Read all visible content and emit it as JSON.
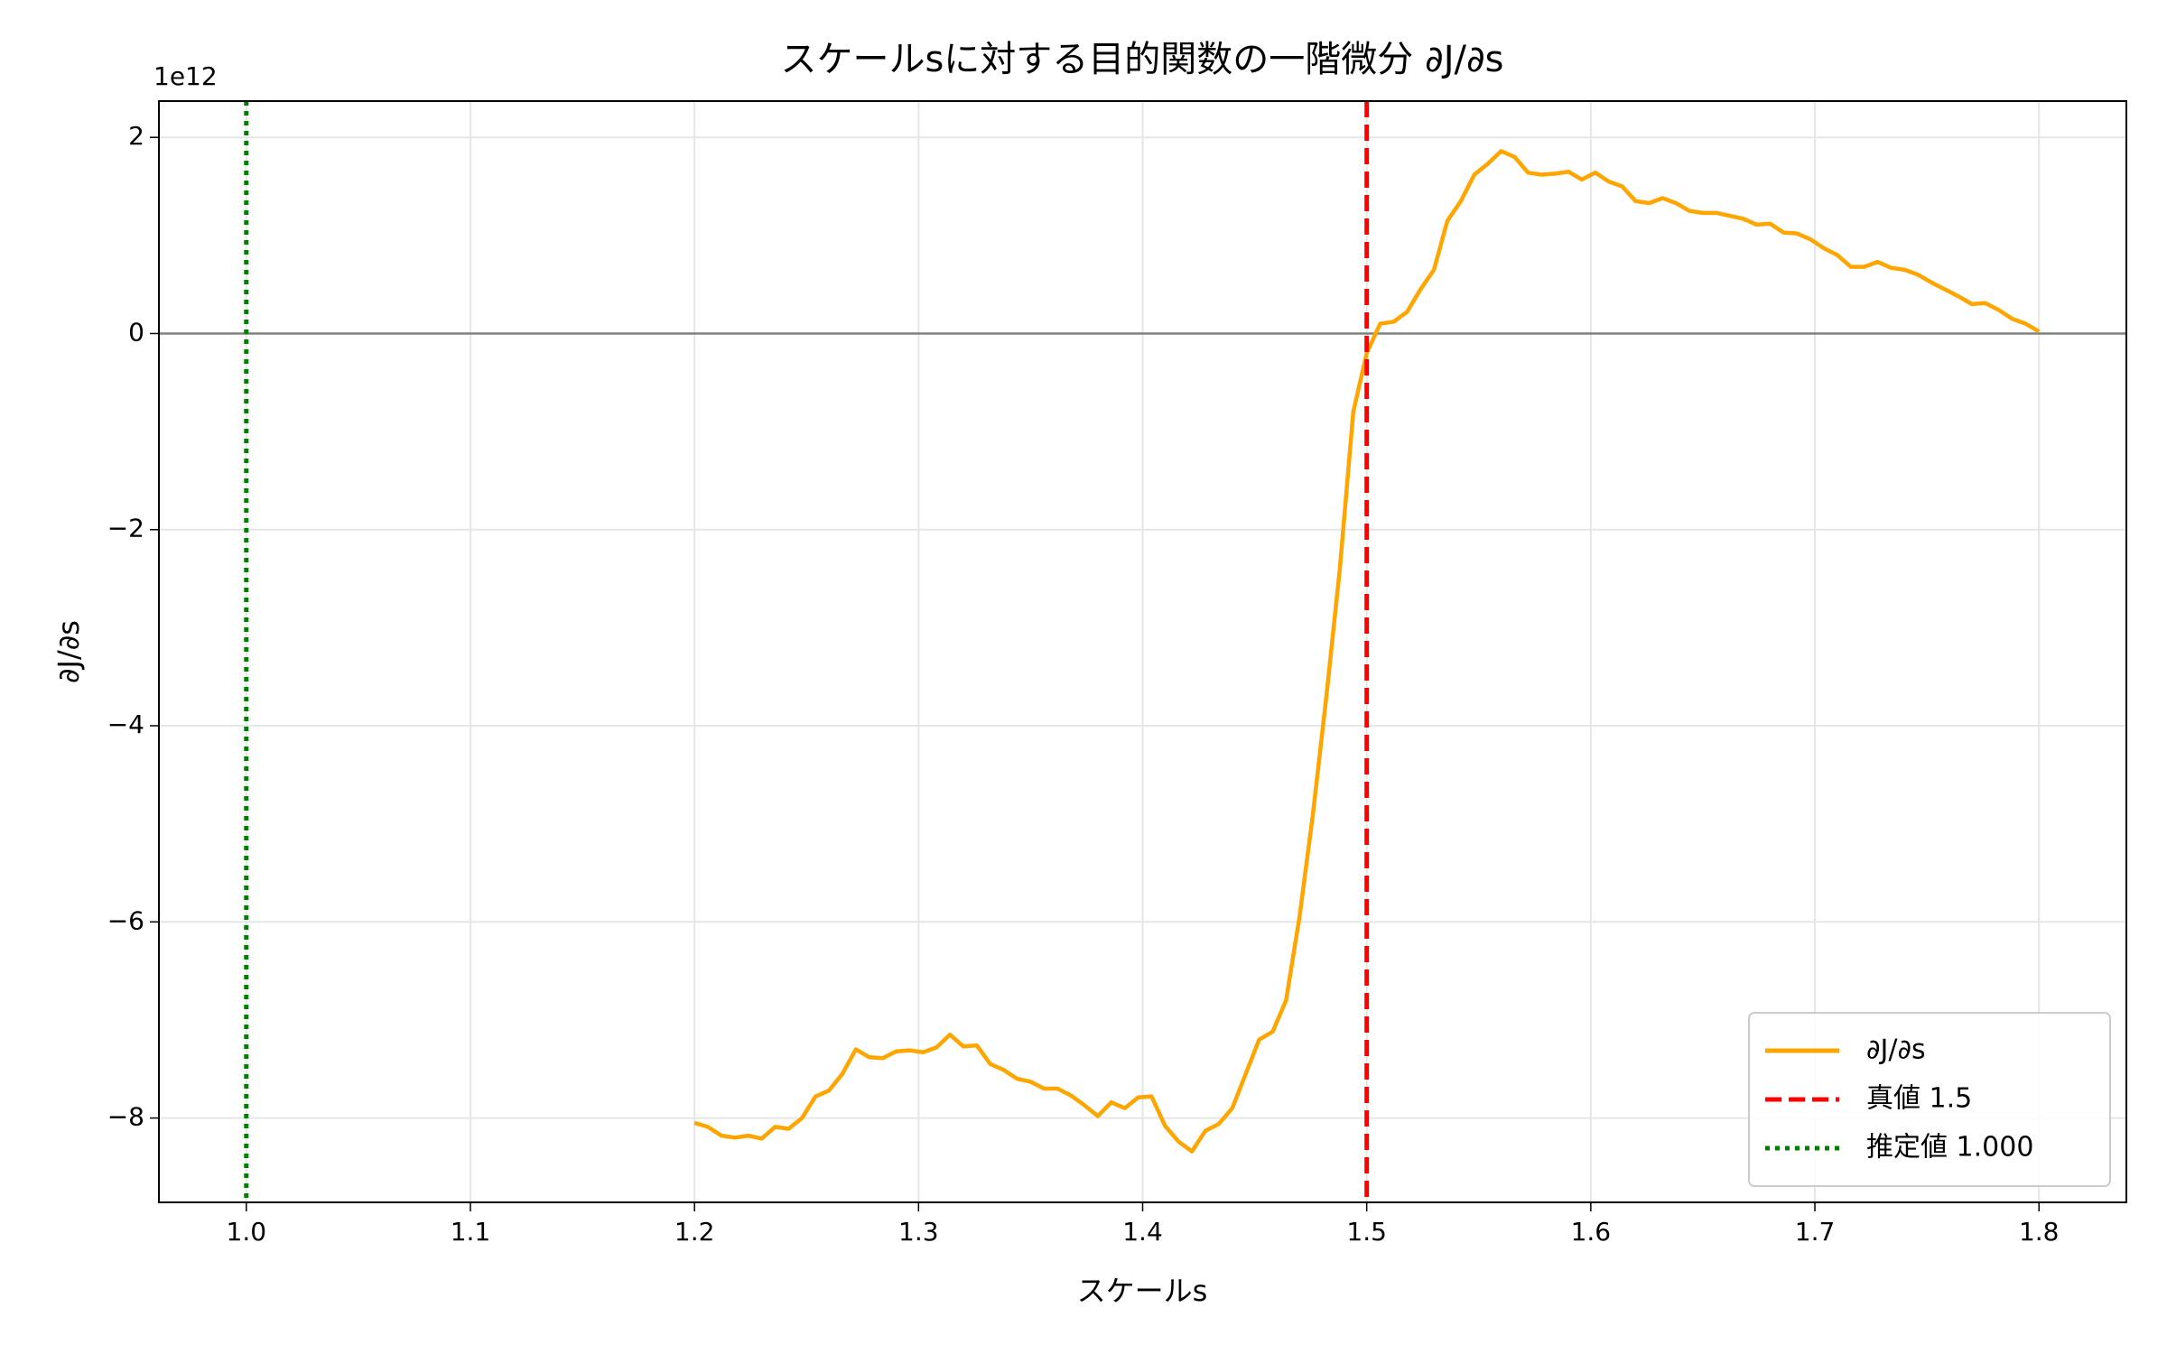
{
  "chart_data": {
    "type": "line",
    "title": "スケールsに対する目的関数の一階微分 ∂J/∂s",
    "x_label": "スケールs",
    "y_label": "∂J/∂s",
    "y_offset_text": "1e12",
    "x": [
      1.2,
      1.206,
      1.212,
      1.218,
      1.224,
      1.23,
      1.236,
      1.242,
      1.248,
      1.254,
      1.26,
      1.266,
      1.272,
      1.278,
      1.284,
      1.29,
      1.296,
      1.302,
      1.308,
      1.314,
      1.32,
      1.326,
      1.332,
      1.338,
      1.344,
      1.35,
      1.356,
      1.362,
      1.368,
      1.374,
      1.38,
      1.386,
      1.392,
      1.398,
      1.404,
      1.41,
      1.416,
      1.422,
      1.428,
      1.434,
      1.44,
      1.446,
      1.452,
      1.458,
      1.464,
      1.47,
      1.476,
      1.482,
      1.488,
      1.494,
      1.5,
      1.506,
      1.512,
      1.518,
      1.524,
      1.53,
      1.536,
      1.542,
      1.548,
      1.554,
      1.56,
      1.566,
      1.572,
      1.578,
      1.584,
      1.59,
      1.596,
      1.602,
      1.608,
      1.614,
      1.62,
      1.626,
      1.632,
      1.638,
      1.644,
      1.65,
      1.656,
      1.662,
      1.668,
      1.674,
      1.68,
      1.686,
      1.692,
      1.698,
      1.704,
      1.71,
      1.716,
      1.722,
      1.728,
      1.734,
      1.74,
      1.746,
      1.752,
      1.758,
      1.764,
      1.77,
      1.776,
      1.782,
      1.788,
      1.794,
      1.8
    ],
    "series": [
      {
        "name": "∂J/∂s",
        "color": "#ffa500",
        "values": [
          -8.05,
          -8.09,
          -8.18,
          -8.2,
          -8.18,
          -8.21,
          -8.09,
          -8.11,
          -8.0,
          -7.78,
          -7.72,
          -7.55,
          -7.3,
          -7.38,
          -7.39,
          -7.32,
          -7.31,
          -7.33,
          -7.28,
          -7.15,
          -7.27,
          -7.26,
          -7.45,
          -7.51,
          -7.6,
          -7.63,
          -7.7,
          -7.7,
          -7.77,
          -7.87,
          -7.98,
          -7.84,
          -7.9,
          -7.79,
          -7.78,
          -8.08,
          -8.24,
          -8.34,
          -8.13,
          -8.06,
          -7.9,
          -7.55,
          -7.2,
          -7.12,
          -6.8,
          -5.95,
          -4.9,
          -3.7,
          -2.4,
          -0.8,
          -0.2,
          0.1,
          0.12,
          0.22,
          0.45,
          0.65,
          1.15,
          1.35,
          1.62,
          1.73,
          1.86,
          1.8,
          1.64,
          1.62,
          1.63,
          1.65,
          1.57,
          1.64,
          1.55,
          1.5,
          1.35,
          1.33,
          1.38,
          1.33,
          1.25,
          1.23,
          1.23,
          1.2,
          1.17,
          1.11,
          1.12,
          1.03,
          1.02,
          0.96,
          0.87,
          0.8,
          0.68,
          0.68,
          0.73,
          0.67,
          0.65,
          0.6,
          0.52,
          0.45,
          0.38,
          0.3,
          0.31,
          0.24,
          0.15,
          0.1,
          0.02
        ]
      }
    ],
    "vlines": [
      {
        "x": 1.5,
        "name": "真値 1.5",
        "color": "#ff0000",
        "style": "dashed"
      },
      {
        "x": 1.0,
        "name": "推定値 1.000",
        "color": "#008000",
        "style": "dotted"
      }
    ],
    "hline": {
      "y": 0,
      "color": "#808080"
    },
    "xlim": [
      0.961,
      1.839
    ],
    "xticks": [
      {
        "value": 1.0,
        "label": "1.0"
      },
      1.1,
      1.2,
      1.3,
      1.4,
      1.5,
      1.6,
      1.7,
      1.8
    ],
    "ylim": [
      -8.86,
      2.37
    ],
    "yticks": [
      {
        "value": -8,
        "label": "−8"
      },
      {
        "value": -6,
        "label": "−6"
      },
      {
        "value": -4,
        "label": "−4"
      },
      {
        "value": -2,
        "label": "−2"
      },
      0,
      2
    ],
    "grid": true,
    "legend_corner": "lower right"
  }
}
